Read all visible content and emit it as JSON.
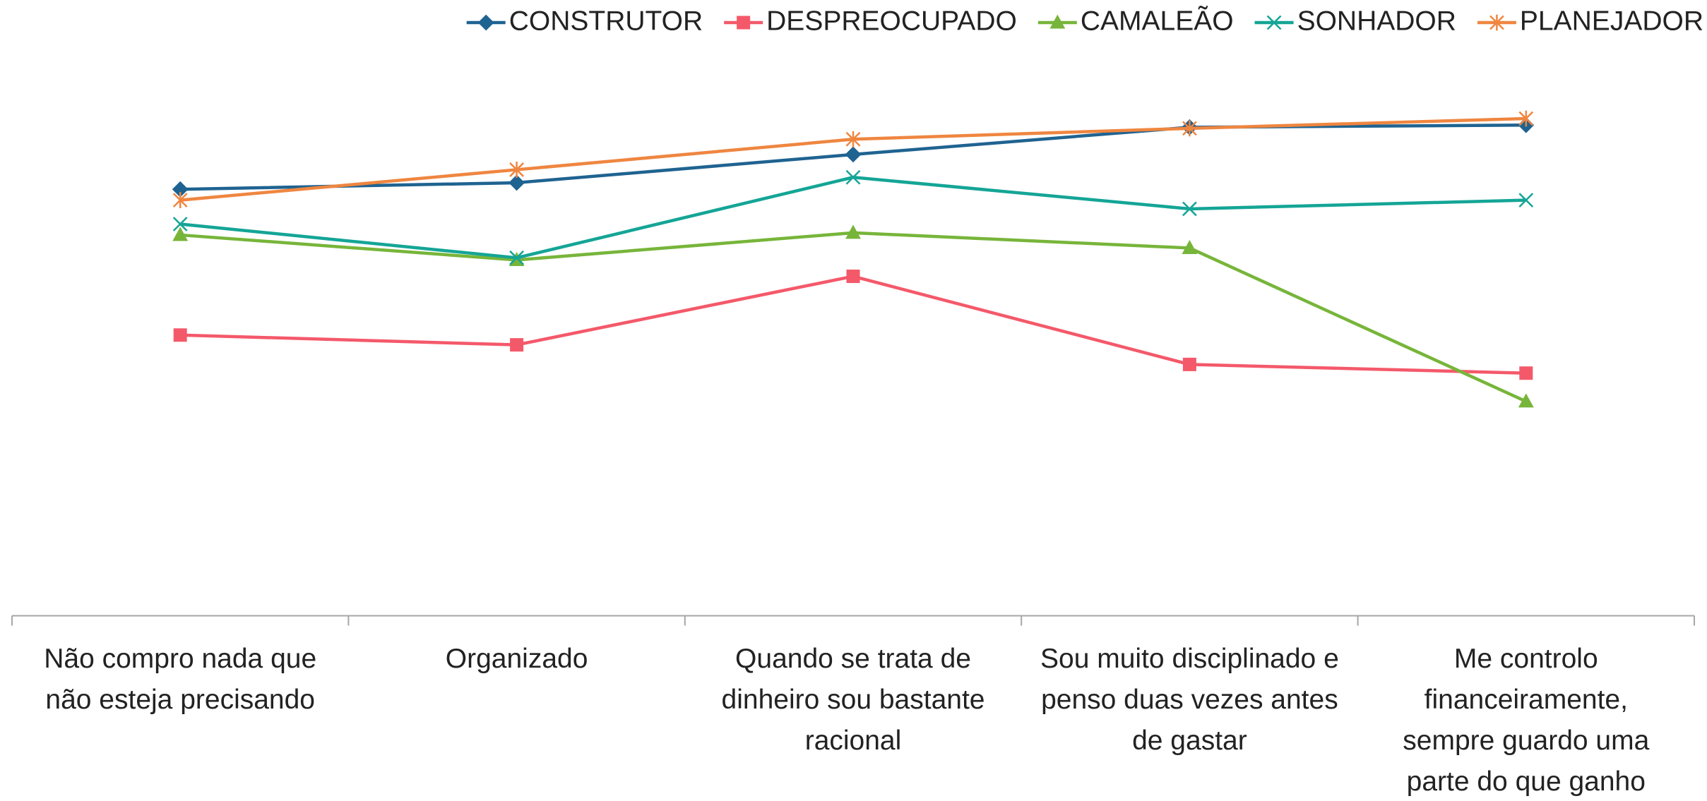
{
  "chart_data": {
    "type": "line",
    "categories": [
      "Não compro nada que não esteja precisando",
      "Organizado",
      "Quando se trata de dinheiro sou bastante racional",
      "Sou muito disciplinado e penso duas vezes antes de gastar",
      "Me controlo financeiramente, sempre guardo uma parte do que ganho"
    ],
    "series": [
      {
        "name": "CONSTRUTOR",
        "color": "#1f6391",
        "marker": "diamond",
        "values": [
          78.4,
          79.6,
          84.8,
          89.8,
          90.2
        ]
      },
      {
        "name": "DESPREOCUPADO",
        "color": "#f4596a",
        "marker": "square",
        "values": [
          51.6,
          49.8,
          62.4,
          46.2,
          44.6
        ]
      },
      {
        "name": "CAMALEÃO",
        "color": "#77b53a",
        "marker": "triangle",
        "values": [
          70,
          65.4,
          70.4,
          67.6,
          39.4
        ]
      },
      {
        "name": "SONHADOR",
        "color": "#14a596",
        "marker": "x",
        "values": [
          72,
          65.8,
          80.6,
          74.8,
          76.4
        ]
      },
      {
        "name": "PLANEJADOR",
        "color": "#ef8640",
        "marker": "asterisk",
        "values": [
          76.4,
          82,
          87.6,
          89.6,
          91.4
        ]
      }
    ],
    "ylim": [
      0,
      100
    ],
    "legend": "top"
  }
}
